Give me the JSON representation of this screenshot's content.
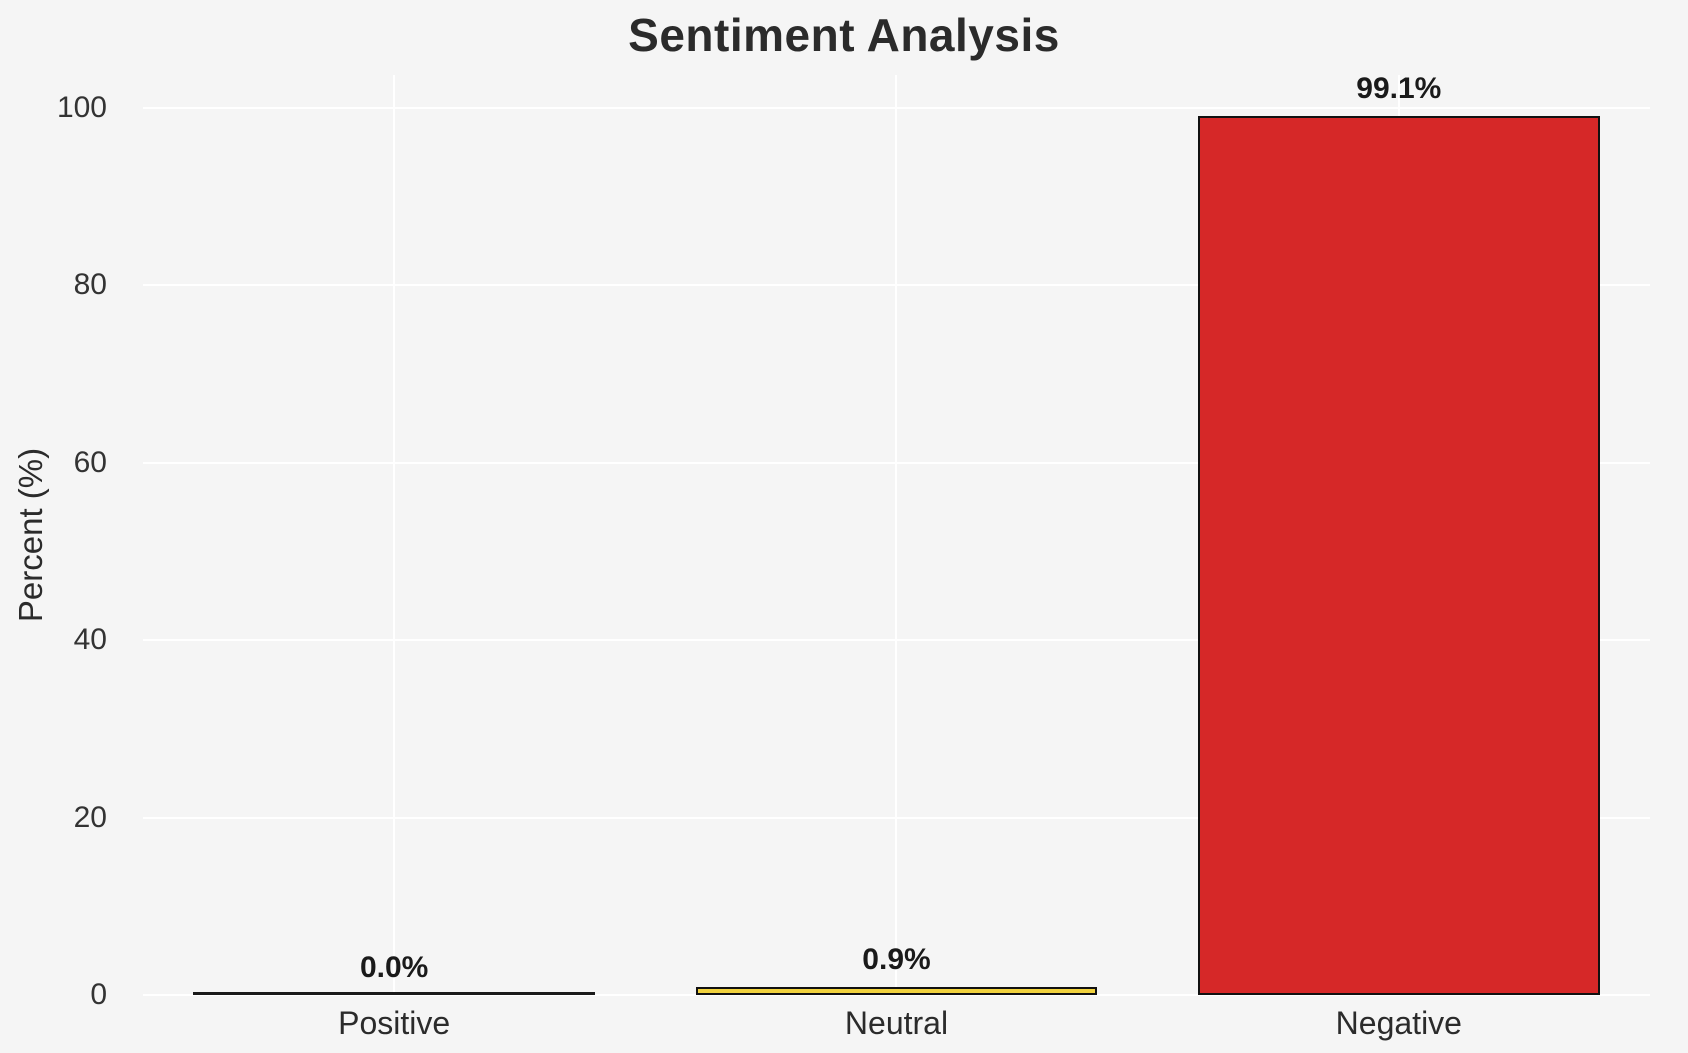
{
  "figure": {
    "background_color": "#f5f5f5",
    "grid_color": "#ffffff",
    "title_color": "#2b2b2b",
    "tick_color": "#333333"
  },
  "chart_data": {
    "type": "bar",
    "title": "Sentiment Analysis",
    "xlabel": "",
    "ylabel": "Percent (%)",
    "categories": [
      "Positive",
      "Neutral",
      "Negative"
    ],
    "values": [
      0.0,
      0.9,
      99.1
    ],
    "bar_labels": [
      "0.0%",
      "0.9%",
      "99.1%"
    ],
    "bar_colors": [
      null,
      "#f1d23e",
      "#d62828"
    ],
    "bar_edge_color": "#111111",
    "yticks": [
      0,
      20,
      40,
      60,
      80,
      100
    ],
    "ylim": [
      0,
      103.7
    ],
    "grid": "both",
    "legend": "none"
  }
}
